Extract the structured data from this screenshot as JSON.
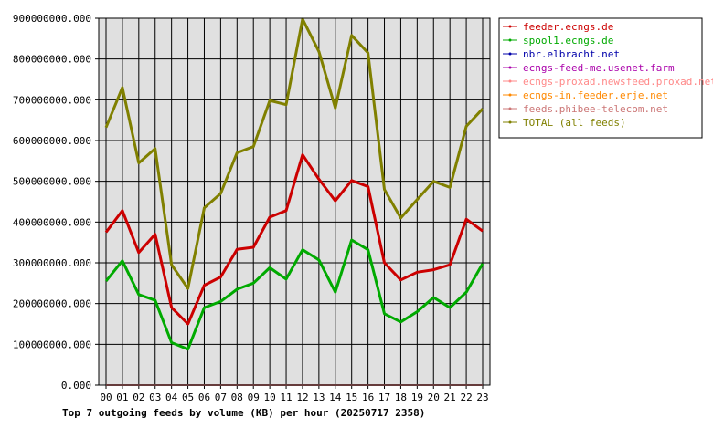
{
  "chart_data": {
    "type": "line",
    "title": "Top 7 outgoing feeds by volume (KB) per hour (20250717 2358)",
    "xlabel": "",
    "ylabel": "",
    "categories": [
      "00",
      "01",
      "02",
      "03",
      "04",
      "05",
      "06",
      "07",
      "08",
      "09",
      "10",
      "11",
      "12",
      "13",
      "14",
      "15",
      "16",
      "17",
      "18",
      "19",
      "20",
      "21",
      "22",
      "23"
    ],
    "ylim": [
      0,
      900000000
    ],
    "yticks": [
      "0.000",
      "100000000.000",
      "200000000.000",
      "300000000.000",
      "400000000.000",
      "500000000.000",
      "600000000.000",
      "700000000.000",
      "800000000.000",
      "900000000.000"
    ],
    "grid": true,
    "legend_position": "right",
    "series": [
      {
        "name": "feeder.ecngs.de",
        "color": "#cc0000",
        "values": [
          375000000,
          428000000,
          325000000,
          370000000,
          190000000,
          150000000,
          245000000,
          265000000,
          333000000,
          338000000,
          412000000,
          428000000,
          565000000,
          505000000,
          452000000,
          502000000,
          487000000,
          300000000,
          258000000,
          277000000,
          283000000,
          295000000,
          407000000,
          378000000
        ]
      },
      {
        "name": "spool1.ecngs.de",
        "color": "#00aa00",
        "values": [
          255000000,
          305000000,
          222000000,
          208000000,
          104000000,
          88000000,
          190000000,
          205000000,
          235000000,
          250000000,
          288000000,
          260000000,
          332000000,
          307000000,
          228000000,
          356000000,
          332000000,
          175000000,
          155000000,
          180000000,
          215000000,
          190000000,
          228000000,
          298000000
        ]
      },
      {
        "name": "nbr.elbracht.net",
        "color": "#0000aa",
        "values": [
          500,
          500,
          500,
          500,
          500,
          500,
          500,
          500,
          500,
          500,
          500,
          500,
          500,
          500,
          500,
          500,
          500,
          500,
          500,
          500,
          500,
          500,
          500,
          500
        ]
      },
      {
        "name": "ecngs-feed-me.usenet.farm",
        "color": "#aa00aa",
        "values": [
          500,
          500,
          500,
          500,
          500,
          500,
          500,
          500,
          500,
          500,
          500,
          500,
          500,
          500,
          500,
          500,
          500,
          500,
          500,
          500,
          500,
          500,
          500,
          500
        ]
      },
      {
        "name": "ecngs-proxad.newsfeed.proxad.net",
        "color": "#ff8888",
        "values": [
          500,
          500,
          500,
          500,
          500,
          500,
          500,
          500,
          500,
          500,
          500,
          500,
          500,
          500,
          500,
          500,
          500,
          500,
          500,
          500,
          500,
          500,
          500,
          500
        ]
      },
      {
        "name": "ecngs-in.feeder.erje.net",
        "color": "#ff8800",
        "values": [
          500,
          500,
          500,
          500,
          500,
          500,
          500,
          500,
          500,
          500,
          500,
          500,
          500,
          500,
          500,
          500,
          500,
          500,
          500,
          500,
          500,
          500,
          500,
          500
        ]
      },
      {
        "name": "feeds.phibee-telecom.net",
        "color": "#cc7777",
        "values": [
          500,
          500,
          500,
          500,
          500,
          500,
          500,
          500,
          500,
          500,
          500,
          500,
          500,
          500,
          500,
          500,
          500,
          500,
          500,
          500,
          500,
          500,
          500,
          500
        ]
      },
      {
        "name": "TOTAL (all feeds)",
        "color": "#808000",
        "values": [
          632000000,
          730000000,
          545000000,
          580000000,
          295000000,
          237000000,
          435000000,
          470000000,
          570000000,
          585000000,
          698000000,
          688000000,
          898000000,
          818000000,
          680000000,
          858000000,
          815000000,
          480000000,
          410000000,
          455000000,
          500000000,
          485000000,
          635000000,
          678000000
        ]
      }
    ]
  }
}
